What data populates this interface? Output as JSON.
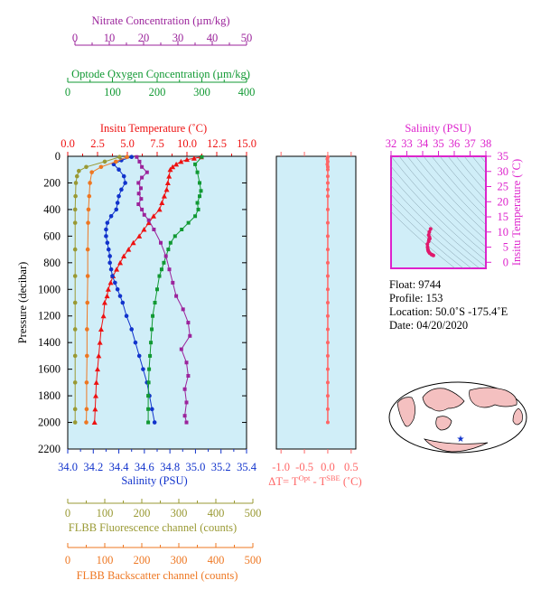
{
  "colors": {
    "nitrate": "#9b239b",
    "oxygen": "#119933",
    "temperature": "#ee1111",
    "salinity": "#1133cc",
    "fluorescence": "#999933",
    "backscatter": "#ee7722",
    "delta_t": "#ff6666",
    "ts_axis": "#dd22cc",
    "panel_bg": "#d0eef8",
    "land": "#f4c0c0",
    "star": "#1133cc"
  },
  "axes": {
    "nitrate": {
      "label": "Nitrate Concentration (µm/kg)",
      "ticks": [
        "0",
        "10",
        "20",
        "30",
        "40",
        "50"
      ]
    },
    "oxygen": {
      "label": "Optode Oxygen Concentration (µm/kg)",
      "ticks": [
        "0",
        "100",
        "200",
        "300",
        "400"
      ]
    },
    "temperature": {
      "label": "Insitu Temperature (˚C)",
      "ticks": [
        "0.0",
        "2.5",
        "5.0",
        "7.5",
        "10.0",
        "12.5",
        "15.0"
      ]
    },
    "pressure": {
      "label": "Pressure (decibar)",
      "ticks": [
        "0",
        "200",
        "400",
        "600",
        "800",
        "1000",
        "1200",
        "1400",
        "1600",
        "1800",
        "2000",
        "2200"
      ]
    },
    "salinity": {
      "label": "Salinity (PSU)",
      "ticks": [
        "34.0",
        "34.2",
        "34.4",
        "34.6",
        "34.8",
        "35.0",
        "35.2",
        "35.4"
      ]
    },
    "delta_t": {
      "label_prefix": "ΔT= T",
      "sup1": "Opt",
      "label_mid": " - T",
      "sup2": "SBE",
      "label_suffix": " (˚C)",
      "ticks": [
        "-1.0",
        "-0.5",
        "0.0",
        "0.5"
      ]
    },
    "fluorescence": {
      "label": "FLBB Fluorescence channel (counts)",
      "ticks": [
        "0",
        "100",
        "200",
        "300",
        "400",
        "500"
      ]
    },
    "backscatter": {
      "label": "FLBB Backscatter channel (counts)",
      "ticks": [
        "0",
        "100",
        "200",
        "300",
        "400",
        "500"
      ]
    },
    "ts_salinity": {
      "label": "Salinity (PSU)",
      "ticks": [
        "32",
        "33",
        "34",
        "35",
        "36",
        "37",
        "38"
      ]
    },
    "ts_temperature": {
      "label": "Insitu Temperature (˚C)",
      "ticks": [
        "0",
        "5",
        "10",
        "15",
        "20",
        "25",
        "30",
        "35"
      ]
    }
  },
  "info": {
    "float": "Float:  9744",
    "profile": "Profile:  153",
    "location": "Location:  50.0˚S  -175.4˚E",
    "date": "Date:  04/20/2020"
  },
  "chart_data": [
    {
      "type": "line",
      "panel": "profiles",
      "y_axis": "Pressure (decibar)",
      "ylim": [
        2200,
        0
      ],
      "series": [
        {
          "name": "Insitu Temperature (˚C)",
          "marker": "triangle",
          "xlim": [
            0,
            15
          ],
          "points": [
            [
              11.2,
              5
            ],
            [
              10.6,
              15
            ],
            [
              10.0,
              25
            ],
            [
              9.5,
              40
            ],
            [
              9.1,
              60
            ],
            [
              8.8,
              80
            ],
            [
              8.6,
              100
            ],
            [
              8.5,
              150
            ],
            [
              8.4,
              200
            ],
            [
              8.3,
              250
            ],
            [
              8.1,
              300
            ],
            [
              7.9,
              350
            ],
            [
              7.7,
              400
            ],
            [
              7.2,
              450
            ],
            [
              6.8,
              500
            ],
            [
              6.4,
              550
            ],
            [
              6.0,
              600
            ],
            [
              5.5,
              650
            ],
            [
              5.1,
              700
            ],
            [
              4.7,
              750
            ],
            [
              4.4,
              800
            ],
            [
              4.1,
              850
            ],
            [
              3.8,
              900
            ],
            [
              3.6,
              950
            ],
            [
              3.4,
              1000
            ],
            [
              3.3,
              1050
            ],
            [
              3.1,
              1100
            ],
            [
              3.0,
              1200
            ],
            [
              2.8,
              1300
            ],
            [
              2.7,
              1400
            ],
            [
              2.6,
              1500
            ],
            [
              2.5,
              1600
            ],
            [
              2.4,
              1700
            ],
            [
              2.35,
              1800
            ],
            [
              2.3,
              1900
            ],
            [
              2.25,
              2000
            ]
          ]
        },
        {
          "name": "Salinity (PSU)",
          "marker": "circle",
          "xlim": [
            34.0,
            35.4
          ],
          "points": [
            [
              34.5,
              5
            ],
            [
              34.42,
              30
            ],
            [
              34.36,
              60
            ],
            [
              34.4,
              100
            ],
            [
              34.44,
              150
            ],
            [
              34.45,
              200
            ],
            [
              34.42,
              250
            ],
            [
              34.4,
              300
            ],
            [
              34.39,
              350
            ],
            [
              34.38,
              400
            ],
            [
              34.34,
              450
            ],
            [
              34.31,
              500
            ],
            [
              34.3,
              550
            ],
            [
              34.3,
              600
            ],
            [
              34.31,
              650
            ],
            [
              34.32,
              700
            ],
            [
              34.33,
              750
            ],
            [
              34.33,
              800
            ],
            [
              34.34,
              850
            ],
            [
              34.35,
              900
            ],
            [
              34.37,
              950
            ],
            [
              34.39,
              1000
            ],
            [
              34.41,
              1050
            ],
            [
              34.43,
              1100
            ],
            [
              34.46,
              1200
            ],
            [
              34.5,
              1300
            ],
            [
              34.53,
              1400
            ],
            [
              34.56,
              1500
            ],
            [
              34.59,
              1600
            ],
            [
              34.62,
              1700
            ],
            [
              34.64,
              1800
            ],
            [
              34.66,
              1900
            ],
            [
              34.68,
              2000
            ]
          ]
        },
        {
          "name": "Optode Oxygen Concentration (µm/kg)",
          "marker": "square",
          "xlim": [
            0,
            400
          ],
          "points": [
            [
              300,
              5
            ],
            [
              285,
              60
            ],
            [
              290,
              120
            ],
            [
              295,
              200
            ],
            [
              298,
              260
            ],
            [
              295,
              300
            ],
            [
              290,
              350
            ],
            [
              292,
              400
            ],
            [
              285,
              450
            ],
            [
              270,
              500
            ],
            [
              255,
              550
            ],
            [
              240,
              600
            ],
            [
              230,
              650
            ],
            [
              225,
              700
            ],
            [
              215,
              800
            ],
            [
              210,
              850
            ],
            [
              205,
              900
            ],
            [
              200,
              1000
            ],
            [
              195,
              1100
            ],
            [
              190,
              1200
            ],
            [
              188,
              1300
            ],
            [
              186,
              1400
            ],
            [
              184,
              1500
            ],
            [
              182,
              1600
            ],
            [
              181,
              1700
            ],
            [
              180,
              1800
            ],
            [
              180,
              1900
            ],
            [
              180,
              2000
            ]
          ]
        },
        {
          "name": "Nitrate Concentration (µm/kg)",
          "marker": "square",
          "xlim": [
            0,
            50
          ],
          "points": [
            [
              18,
              5
            ],
            [
              18.8,
              40
            ],
            [
              19.5,
              80
            ],
            [
              21.0,
              120
            ],
            [
              19.5,
              160
            ],
            [
              18.5,
              200
            ],
            [
              19.2,
              240
            ],
            [
              18.6,
              280
            ],
            [
              19.3,
              320
            ],
            [
              18.5,
              360
            ],
            [
              19.5,
              400
            ],
            [
              20.2,
              440
            ],
            [
              21.5,
              480
            ],
            [
              23.0,
              550
            ],
            [
              25.0,
              650
            ],
            [
              26.5,
              750
            ],
            [
              27.5,
              850
            ],
            [
              28.5,
              950
            ],
            [
              29.5,
              1050
            ],
            [
              31.5,
              1150
            ],
            [
              33.0,
              1250
            ],
            [
              33.5,
              1350
            ],
            [
              31.0,
              1450
            ],
            [
              32.5,
              1550
            ],
            [
              33.0,
              1650
            ],
            [
              32.0,
              1750
            ],
            [
              32.5,
              1850
            ],
            [
              32.0,
              1950
            ],
            [
              32.5,
              2000
            ]
          ]
        },
        {
          "name": "FLBB Fluorescence channel (counts)",
          "marker": "circle",
          "xlim": [
            0,
            500
          ],
          "points": [
            [
              140,
              5
            ],
            [
              100,
              40
            ],
            [
              50,
              80
            ],
            [
              30,
              110
            ],
            [
              25,
              150
            ],
            [
              22,
              200
            ],
            [
              21,
              300
            ],
            [
              20,
              400
            ],
            [
              20,
              500
            ],
            [
              20,
              700
            ],
            [
              20,
              900
            ],
            [
              20,
              1100
            ],
            [
              20,
              1300
            ],
            [
              20,
              1500
            ],
            [
              20,
              1700
            ],
            [
              20,
              1900
            ],
            [
              20,
              2000
            ]
          ]
        },
        {
          "name": "FLBB Backscatter channel (counts)",
          "marker": "circle",
          "xlim": [
            0,
            500
          ],
          "points": [
            [
              160,
              5
            ],
            [
              130,
              40
            ],
            [
              90,
              80
            ],
            [
              65,
              120
            ],
            [
              60,
              200
            ],
            [
              58,
              300
            ],
            [
              56,
              400
            ],
            [
              55,
              500
            ],
            [
              54,
              700
            ],
            [
              54,
              900
            ],
            [
              53,
              1100
            ],
            [
              52,
              1300
            ],
            [
              52,
              1500
            ],
            [
              51,
              1700
            ],
            [
              51,
              1900
            ],
            [
              50,
              2000
            ]
          ]
        }
      ]
    },
    {
      "type": "line",
      "panel": "delta_t",
      "x_axis": "ΔT (˚C)",
      "xlim": [
        -1.1,
        0.6
      ],
      "ylim": [
        2200,
        0
      ],
      "series": [
        {
          "name": "ΔT",
          "points": [
            [
              0.0,
              5
            ],
            [
              -0.01,
              20
            ],
            [
              0.0,
              40
            ],
            [
              -0.01,
              60
            ],
            [
              0.0,
              80
            ],
            [
              0.0,
              100
            ],
            [
              0.0,
              150
            ],
            [
              0.0,
              200
            ],
            [
              0.0,
              250
            ],
            [
              0.0,
              300
            ],
            [
              0.0,
              400
            ],
            [
              0.0,
              500
            ],
            [
              0.0,
              600
            ],
            [
              0.0,
              700
            ],
            [
              0.0,
              800
            ],
            [
              0.0,
              900
            ],
            [
              0.0,
              1000
            ],
            [
              0.0,
              1100
            ],
            [
              0.0,
              1200
            ],
            [
              0.0,
              1300
            ],
            [
              0.0,
              1400
            ],
            [
              0.0,
              1500
            ],
            [
              0.0,
              1600
            ],
            [
              0.0,
              1700
            ],
            [
              0.0,
              1800
            ],
            [
              0.0,
              1900
            ],
            [
              0.0,
              2000
            ]
          ]
        }
      ]
    },
    {
      "type": "scatter",
      "panel": "ts_diagram",
      "xlim": [
        32,
        38
      ],
      "ylim": [
        -2,
        35
      ],
      "series": [
        {
          "name": "T-S",
          "points": [
            [
              34.5,
              11.0
            ],
            [
              34.42,
              10.0
            ],
            [
              34.38,
              9.0
            ],
            [
              34.43,
              8.3
            ],
            [
              34.45,
              7.8
            ],
            [
              34.4,
              7.5
            ],
            [
              34.38,
              6.9
            ],
            [
              34.3,
              6.0
            ],
            [
              34.31,
              5.0
            ],
            [
              34.33,
              4.3
            ],
            [
              34.35,
              3.8
            ],
            [
              34.39,
              3.4
            ],
            [
              34.45,
              3.0
            ],
            [
              34.55,
              2.6
            ],
            [
              34.62,
              2.4
            ],
            [
              34.68,
              2.25
            ]
          ]
        }
      ]
    }
  ]
}
